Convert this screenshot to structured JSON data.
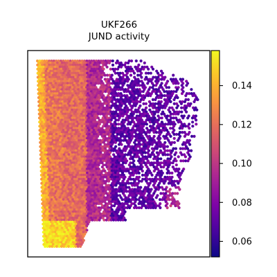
{
  "chart_data": {
    "type": "heatmap",
    "title_lines": [
      "UKF266",
      "JUND activity"
    ],
    "xlabel": "",
    "ylabel": "",
    "colormap": "plasma",
    "colorbar": {
      "vmin": 0.052,
      "vmax": 0.158,
      "ticks": [
        0.06,
        0.08,
        0.1,
        0.12,
        0.14
      ],
      "tick_labels": [
        "0.06",
        "0.08",
        "0.10",
        "0.12",
        "0.14"
      ]
    },
    "value_regions": {
      "left_tissue_edge": 0.135,
      "left_half": 0.118,
      "center_band": 0.095,
      "right_half": 0.072,
      "bottom_left_corner": 0.15
    },
    "colors": {
      "plasma_low": "#0d0887",
      "plasma_mid": "#cc4778",
      "plasma_high": "#f0f921"
    }
  }
}
